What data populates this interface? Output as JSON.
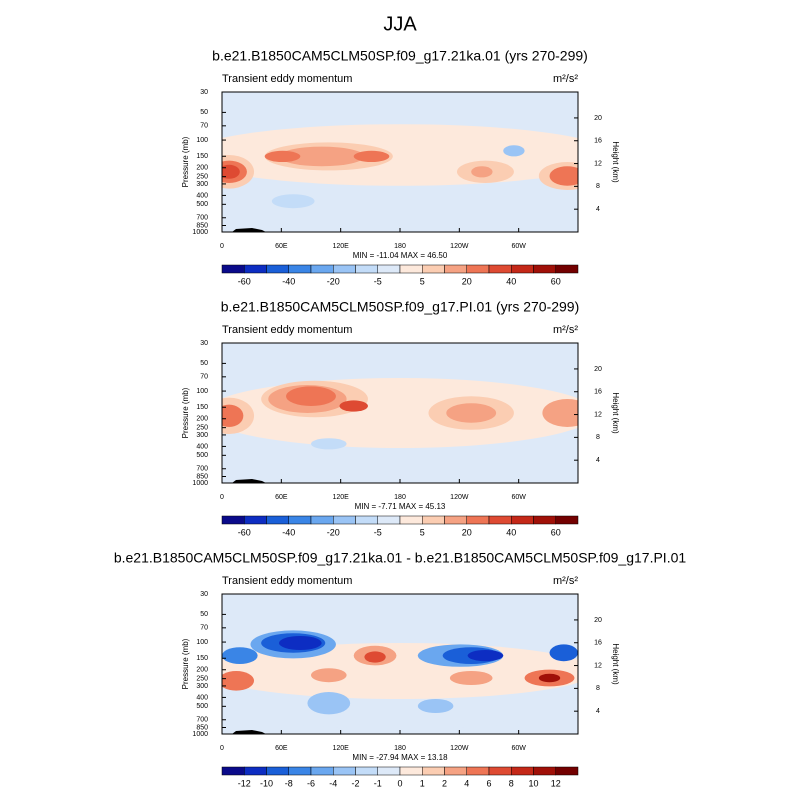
{
  "suptitle": "JJA",
  "chart_data": [
    {
      "type": "contour",
      "title": "b.e21.B1850CAM5CLM50SP.f09_g17.21ka.01 (yrs 270-299)",
      "left_label": "Transient eddy momentum",
      "units": "m²/s²",
      "ylabel": "Pressure (mb)",
      "y2label": "Height (km)",
      "xlim": [
        0,
        360
      ],
      "xticks": [
        0,
        {
          "value": 60,
          "label": "60E"
        },
        {
          "value": 120,
          "label": "120E"
        },
        180,
        {
          "value": 240,
          "label": "120W"
        },
        {
          "value": 300,
          "label": "60W"
        }
      ],
      "ylim": [
        1000,
        30
      ],
      "yticks": [
        30,
        50,
        70,
        100,
        150,
        200,
        250,
        300,
        400,
        500,
        700,
        850,
        1000
      ],
      "log_scale": true,
      "y2ticks": [
        4,
        8,
        12,
        16,
        20
      ],
      "stats": "MIN = -11.04  MAX = 46.50",
      "colorbar_labels": [
        -60,
        -40,
        -20,
        -5,
        5,
        20,
        40,
        60
      ],
      "colors": [
        "#0a0a8a",
        "#0d2dc2",
        "#1a5fd8",
        "#3a85e6",
        "#6aa7ef",
        "#9ac4f5",
        "#c3dcf8",
        "#dde9f8",
        "#fde9dc",
        "#fbcdb2",
        "#f5a283",
        "#ee7555",
        "#de4a32",
        "#c42818",
        "#a01008",
        "#730000"
      ]
    },
    {
      "type": "contour",
      "title": "b.e21.B1850CAM5CLM50SP.f09_g17.PI.01 (yrs 270-299)",
      "left_label": "Transient eddy momentum",
      "units": "m²/s²",
      "ylabel": "Pressure (mb)",
      "y2label": "Height (km)",
      "xlim": [
        0,
        360
      ],
      "xticks": [
        0,
        {
          "value": 60,
          "label": "60E"
        },
        {
          "value": 120,
          "label": "120E"
        },
        180,
        {
          "value": 240,
          "label": "120W"
        },
        {
          "value": 300,
          "label": "60W"
        }
      ],
      "ylim": [
        1000,
        30
      ],
      "yticks": [
        30,
        50,
        70,
        100,
        150,
        200,
        250,
        300,
        400,
        500,
        700,
        850,
        1000
      ],
      "log_scale": true,
      "y2ticks": [
        4,
        8,
        12,
        16,
        20
      ],
      "stats": "MIN = -7.71  MAX = 45.13",
      "colorbar_labels": [
        -60,
        -40,
        -20,
        -5,
        5,
        20,
        40,
        60
      ],
      "colors": [
        "#0a0a8a",
        "#0d2dc2",
        "#1a5fd8",
        "#3a85e6",
        "#6aa7ef",
        "#9ac4f5",
        "#c3dcf8",
        "#dde9f8",
        "#fde9dc",
        "#fbcdb2",
        "#f5a283",
        "#ee7555",
        "#de4a32",
        "#c42818",
        "#a01008",
        "#730000"
      ]
    },
    {
      "type": "contour",
      "title": "b.e21.B1850CAM5CLM50SP.f09_g17.21ka.01 - b.e21.B1850CAM5CLM50SP.f09_g17.PI.01",
      "left_label": "Transient eddy momentum",
      "units": "m²/s²",
      "ylabel": "Pressure (mb)",
      "y2label": "Height (km)",
      "xlim": [
        0,
        360
      ],
      "xticks": [
        0,
        {
          "value": 60,
          "label": "60E"
        },
        {
          "value": 120,
          "label": "120E"
        },
        180,
        {
          "value": 240,
          "label": "120W"
        },
        {
          "value": 300,
          "label": "60W"
        }
      ],
      "ylim": [
        1000,
        30
      ],
      "yticks": [
        30,
        50,
        70,
        100,
        150,
        200,
        250,
        300,
        400,
        500,
        700,
        850,
        1000
      ],
      "log_scale": true,
      "y2ticks": [
        4,
        8,
        12,
        16,
        20
      ],
      "stats": "MIN = -27.94  MAX = 13.18",
      "colorbar_labels": [
        -12,
        -10,
        -8,
        -6,
        -4,
        -2,
        -1,
        0,
        1,
        2,
        4,
        6,
        8,
        10,
        12
      ],
      "colors": [
        "#0a0a8a",
        "#0d2dc2",
        "#1a5fd8",
        "#3a85e6",
        "#6aa7ef",
        "#9ac4f5",
        "#c3dcf8",
        "#dde9f8",
        "#fde9dc",
        "#fbcdb2",
        "#f5a283",
        "#ee7555",
        "#de4a32",
        "#c42818",
        "#a01008",
        "#730000"
      ]
    }
  ]
}
